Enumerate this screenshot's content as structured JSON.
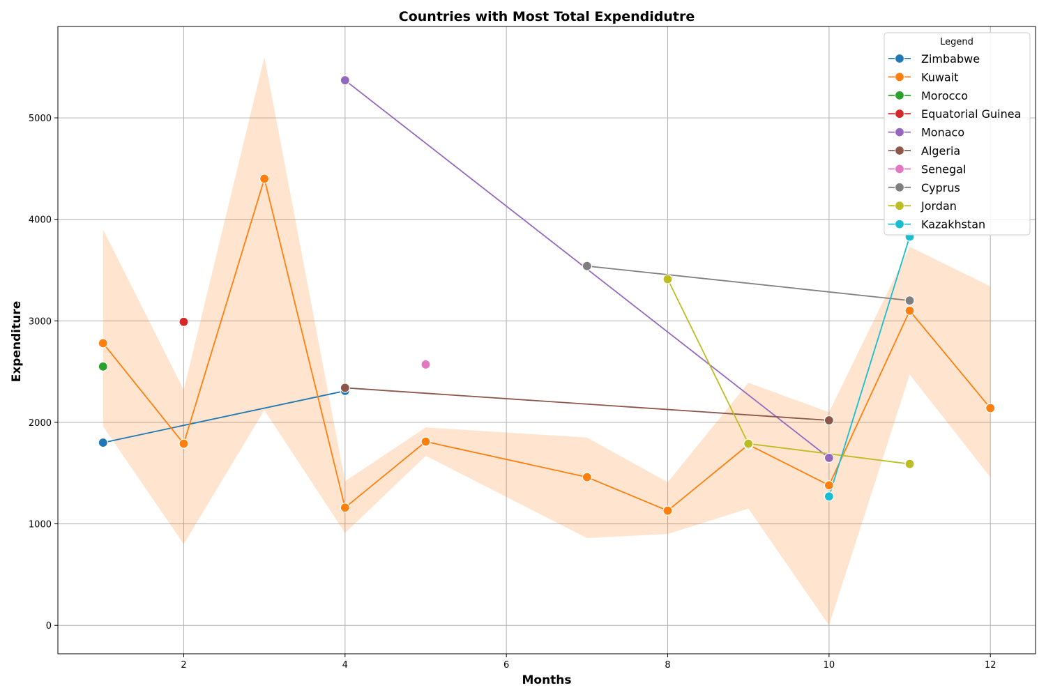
{
  "chart_data": {
    "type": "line",
    "title": "Countries with Most Total Expendidutre",
    "xlabel": "Months",
    "ylabel": "Expenditure",
    "xlim": [
      0.44,
      12.56
    ],
    "ylim": [
      -280,
      5900
    ],
    "xticks": [
      2,
      4,
      6,
      8,
      10,
      12
    ],
    "yticks": [
      0,
      1000,
      2000,
      3000,
      4000,
      5000
    ],
    "grid": true,
    "legend": {
      "title": "Legend",
      "placement": "top-right"
    },
    "series": [
      {
        "name": "Zimbabwe",
        "color": "#1f77b4",
        "points": [
          [
            1,
            1800
          ],
          [
            4,
            2310
          ]
        ]
      },
      {
        "name": "Kuwait",
        "color": "#ff7f0e",
        "points": [
          [
            1,
            2780
          ],
          [
            2,
            1790
          ],
          [
            3,
            4400
          ],
          [
            4,
            1160
          ],
          [
            5,
            1810
          ],
          [
            7,
            1460
          ],
          [
            8,
            1130
          ],
          [
            9,
            1780
          ],
          [
            10,
            1380
          ],
          [
            11,
            3100
          ],
          [
            12,
            2140
          ]
        ],
        "band": [
          [
            1,
            1960,
            3900
          ],
          [
            2,
            800,
            2320
          ],
          [
            3,
            2120,
            5600
          ],
          [
            4,
            910,
            1420
          ],
          [
            5,
            1670,
            1950
          ],
          [
            7,
            860,
            1850
          ],
          [
            8,
            900,
            1410
          ],
          [
            9,
            1150,
            2390
          ],
          [
            10,
            0,
            2100
          ],
          [
            11,
            2470,
            3730
          ],
          [
            12,
            1460,
            3340
          ]
        ]
      },
      {
        "name": "Morocco",
        "color": "#2ca02c",
        "points": [
          [
            1,
            2550
          ]
        ]
      },
      {
        "name": "Equatorial Guinea",
        "color": "#d62728",
        "points": [
          [
            2,
            2990
          ]
        ]
      },
      {
        "name": "Monaco",
        "color": "#9467bd",
        "points": [
          [
            4,
            5370
          ],
          [
            10,
            1650
          ]
        ]
      },
      {
        "name": "Algeria",
        "color": "#8c564b",
        "points": [
          [
            4,
            2340
          ],
          [
            10,
            2020
          ]
        ]
      },
      {
        "name": "Senegal",
        "color": "#e377c2",
        "points": [
          [
            5,
            2570
          ]
        ]
      },
      {
        "name": "Cyprus",
        "color": "#7f7f7f",
        "points": [
          [
            7,
            3540
          ],
          [
            11,
            3200
          ]
        ]
      },
      {
        "name": "Jordan",
        "color": "#bcbd22",
        "points": [
          [
            8,
            3410
          ],
          [
            9,
            1790
          ],
          [
            11,
            1590
          ]
        ]
      },
      {
        "name": "Kazakhstan",
        "color": "#17becf",
        "points": [
          [
            10,
            1270
          ],
          [
            11,
            3830
          ]
        ]
      }
    ]
  }
}
